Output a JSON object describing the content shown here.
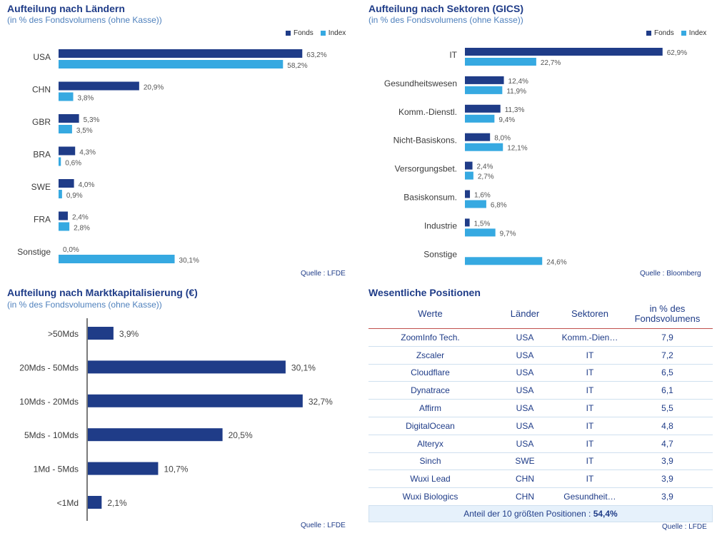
{
  "colors": {
    "fonds": "#1f3c88",
    "index": "#36a9e1",
    "title": "#1f3c88",
    "subtitle": "#4f81bd"
  },
  "panels": {
    "countries": {
      "title": "Aufteilung nach Ländern",
      "subtitle": "(in % des Fondsvolumens (ohne Kasse))",
      "legend_fonds": "Fonds",
      "legend_index": "Index",
      "source": "Quelle : LFDE"
    },
    "sectors": {
      "title": "Aufteilung nach Sektoren (GICS)",
      "subtitle": "(in % des Fondsvolumens (ohne Kasse))",
      "legend_fonds": "Fonds",
      "legend_index": "Index",
      "source": "Quelle : Bloomberg"
    },
    "marketcap": {
      "title": "Aufteilung nach Marktkapitalisierung (€)",
      "subtitle": "(in % des Fondsvolumens (ohne Kasse))",
      "source": "Quelle : LFDE"
    },
    "positions": {
      "title": "Wesentliche Positionen",
      "headers": [
        "Werte",
        "Länder",
        "Sektoren",
        "in % des Fondsvolumens"
      ],
      "rows": [
        [
          "ZoomInfo Tech.",
          "USA",
          "Komm.-Dien…",
          "7,9"
        ],
        [
          "Zscaler",
          "USA",
          "IT",
          "7,2"
        ],
        [
          "Cloudflare",
          "USA",
          "IT",
          "6,5"
        ],
        [
          "Dynatrace",
          "USA",
          "IT",
          "6,1"
        ],
        [
          "Affirm",
          "USA",
          "IT",
          "5,5"
        ],
        [
          "DigitalOcean",
          "USA",
          "IT",
          "4,8"
        ],
        [
          "Alteryx",
          "USA",
          "IT",
          "4,7"
        ],
        [
          "Sinch",
          "SWE",
          "IT",
          "3,9"
        ],
        [
          "Wuxi Lead",
          "CHN",
          "IT",
          "3,9"
        ],
        [
          "Wuxi Biologics",
          "CHN",
          "Gesundheit…",
          "3,9"
        ]
      ],
      "summary_label": "Anteil der 10 größten Positionen :",
      "summary_value": "54,4%",
      "source": "Quelle : LFDE"
    }
  },
  "chart_data": [
    {
      "type": "bar",
      "orientation": "horizontal",
      "title": "Aufteilung nach Ländern",
      "categories": [
        "USA",
        "CHN",
        "GBR",
        "BRA",
        "SWE",
        "FRA",
        "Sonstige"
      ],
      "series": [
        {
          "name": "Fonds",
          "values": [
            63.2,
            20.9,
            5.3,
            4.3,
            4.0,
            2.4,
            0.0
          ],
          "labels": [
            "63,2%",
            "20,9%",
            "5,3%",
            "4,3%",
            "4,0%",
            "2,4%",
            "0,0%"
          ]
        },
        {
          "name": "Index",
          "values": [
            58.2,
            3.8,
            3.5,
            0.6,
            0.9,
            2.8,
            30.1
          ],
          "labels": [
            "58,2%",
            "3,8%",
            "3,5%",
            "0,6%",
            "0,9%",
            "2,8%",
            "30,1%"
          ]
        }
      ],
      "legend": "top-right"
    },
    {
      "type": "bar",
      "orientation": "horizontal",
      "title": "Aufteilung nach Sektoren (GICS)",
      "categories": [
        "IT",
        "Gesundheitswesen",
        "Komm.-Dienstl.",
        "Nicht-Basiskons.",
        "Versorgungsbet.",
        "Basiskonsum.",
        "Industrie",
        "Sonstige"
      ],
      "series": [
        {
          "name": "Fonds",
          "values": [
            62.9,
            12.4,
            11.3,
            8.0,
            2.4,
            1.6,
            1.5,
            null
          ],
          "labels": [
            "62,9%",
            "12,4%",
            "11,3%",
            "8,0%",
            "2,4%",
            "1,6%",
            "1,5%",
            ""
          ]
        },
        {
          "name": "Index",
          "values": [
            22.7,
            11.9,
            9.4,
            12.1,
            2.7,
            6.8,
            9.7,
            24.6
          ],
          "labels": [
            "22,7%",
            "11,9%",
            "9,4%",
            "12,1%",
            "2,7%",
            "6,8%",
            "9,7%",
            "24,6%"
          ]
        }
      ],
      "legend": "top-right"
    },
    {
      "type": "bar",
      "orientation": "horizontal",
      "title": "Aufteilung nach Marktkapitalisierung (€)",
      "categories": [
        ">50Mds",
        "20Mds - 50Mds",
        "10Mds - 20Mds",
        "5Mds - 10Mds",
        "1Md - 5Mds",
        "<1Md"
      ],
      "series": [
        {
          "name": "Fonds",
          "values": [
            3.9,
            30.1,
            32.7,
            20.5,
            10.7,
            2.1
          ],
          "labels": [
            "3,9%",
            "30,1%",
            "32,7%",
            "20,5%",
            "10,7%",
            "2,1%"
          ]
        }
      ]
    }
  ]
}
